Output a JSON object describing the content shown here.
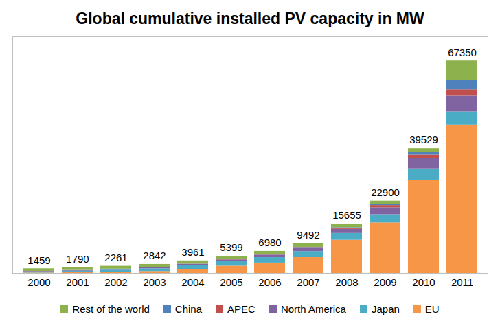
{
  "chart_data": {
    "type": "bar",
    "title": "Global cumulative installed PV capacity in MW",
    "stacked": true,
    "tick_labels": "x",
    "grid": false,
    "legend": "bottom",
    "categories": [
      "2000",
      "2001",
      "2002",
      "2003",
      "2004",
      "2005",
      "2006",
      "2007",
      "2008",
      "2009",
      "2010",
      "2011"
    ],
    "totals": [
      1459,
      1790,
      2261,
      2842,
      3961,
      5399,
      6980,
      9492,
      15655,
      22900,
      39529,
      67350
    ],
    "ylim": [
      0,
      75000
    ],
    "series": [
      {
        "name": "Rest of the world",
        "color": "#8db24d",
        "values": [
          805,
          829,
          905,
          965,
          985,
          988,
          1064,
          1223,
          1171,
          1100,
          1229,
          6150
        ]
      },
      {
        "name": "China",
        "color": "#4f81bd",
        "values": [
          19,
          24,
          42,
          52,
          62,
          70,
          80,
          100,
          140,
          300,
          800,
          3000
        ]
      },
      {
        "name": "APEC",
        "color": "#c0504d",
        "values": [
          30,
          40,
          45,
          55,
          65,
          80,
          95,
          150,
          400,
          700,
          1000,
          2000
        ]
      },
      {
        "name": "North America",
        "color": "#8064a2",
        "values": [
          146,
          182,
          236,
          312,
          412,
          550,
          752,
          1100,
          1300,
          2200,
          3400,
          5000
        ]
      },
      {
        "name": "Japan",
        "color": "#4bacc6",
        "values": [
          330,
          453,
          637,
          860,
          1132,
          1422,
          1708,
          1919,
          2144,
          2600,
          3600,
          4200
        ]
      },
      {
        "name": "EU",
        "color": "#f79646",
        "values": [
          129,
          262,
          396,
          598,
          1305,
          2289,
          3281,
          5000,
          10500,
          16000,
          29500,
          47000
        ]
      }
    ]
  }
}
